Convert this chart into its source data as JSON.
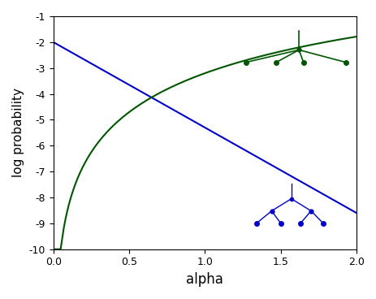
{
  "xlim": [
    0.0,
    2.0
  ],
  "ylim": [
    -10,
    -1
  ],
  "xlabel": "alpha",
  "ylabel": "log probability",
  "xticks": [
    0.0,
    0.5,
    1.0,
    1.5,
    2.0
  ],
  "ytick_labels": [
    "-10",
    "-9",
    "-8",
    "-7",
    "-6",
    "-5",
    "-4",
    "-3",
    "-2",
    "-1"
  ],
  "yticks": [
    -10,
    -9,
    -8,
    -7,
    -6,
    -5,
    -4,
    -3,
    -2,
    -1
  ],
  "blue_color": "#0000cc",
  "green_color": "#005500",
  "figsize": [
    4.64,
    3.68
  ],
  "dpi": 100,
  "blue_at_0": -2.0,
  "blue_slope": -3.3,
  "green_log_coef": 2.3,
  "green_lin_coef": -0.18,
  "green_const": -3.02
}
